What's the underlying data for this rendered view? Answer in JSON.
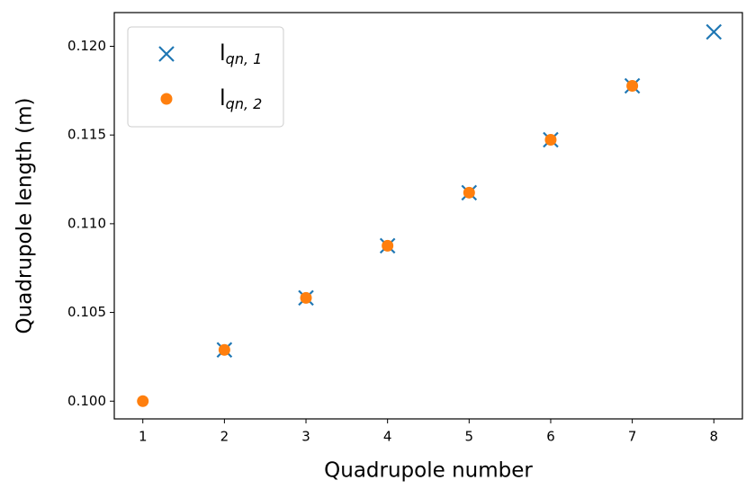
{
  "chart_data": {
    "type": "scatter",
    "xlabel": "Quadrupole number",
    "ylabel": "Quadrupole length (m)",
    "xlim": [
      0.65,
      8.35
    ],
    "ylim": [
      0.099,
      0.1219
    ],
    "xticks": [
      1,
      2,
      3,
      4,
      5,
      6,
      7,
      8
    ],
    "yticks": [
      {
        "value": 0.1,
        "label": "0.100"
      },
      0.105,
      {
        "value": 0.11,
        "label": "0.110"
      },
      0.115,
      {
        "value": 0.12,
        "label": "0.120"
      }
    ],
    "legend": "upper left",
    "series": [
      {
        "name": "l",
        "subscript": "qn, 1",
        "marker": "x",
        "color": "#1f77b4",
        "x": [
          2,
          3,
          4,
          5,
          6,
          7,
          8
        ],
        "values": [
          0.10289,
          0.10582,
          0.10876,
          0.11175,
          0.11473,
          0.11777,
          0.12081
        ]
      },
      {
        "name": "l",
        "subscript": "qn, 2",
        "marker": "o",
        "color": "#ff7f0e",
        "x": [
          1,
          2,
          3,
          4,
          5,
          6,
          7
        ],
        "values": [
          0.1,
          0.10289,
          0.10582,
          0.10876,
          0.11175,
          0.11473,
          0.11777
        ]
      }
    ]
  }
}
